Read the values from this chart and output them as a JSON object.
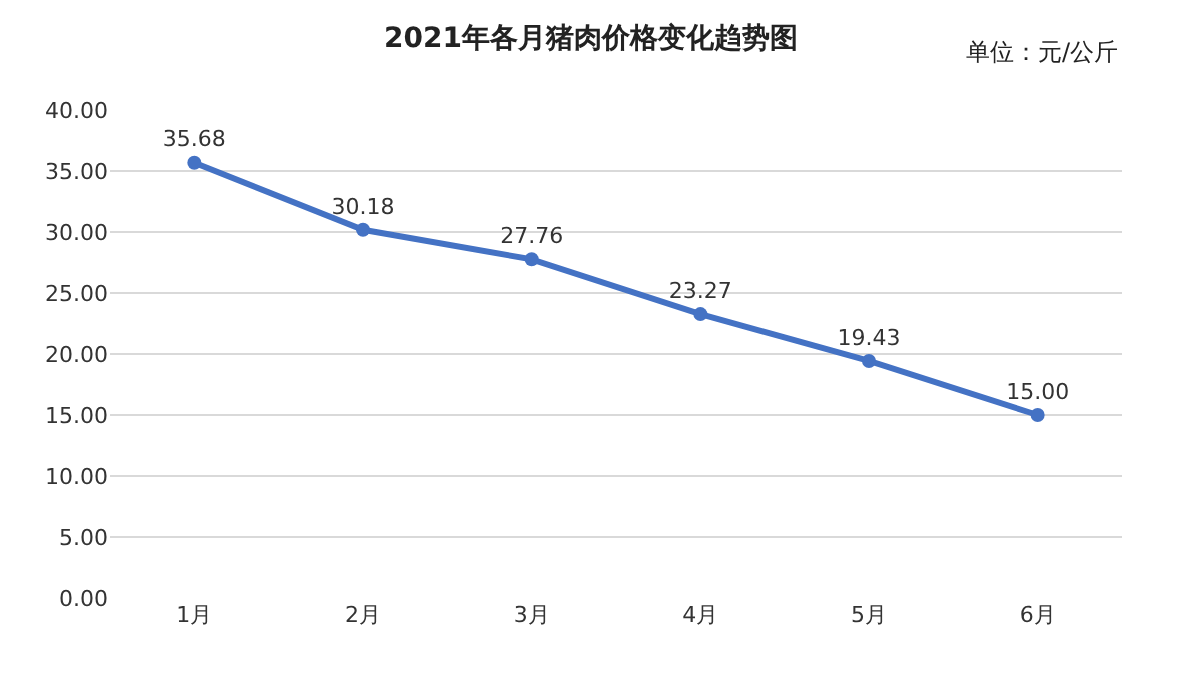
{
  "chart_data": {
    "type": "line",
    "title": "2021年各月猪肉价格变化趋势图",
    "annotations": [
      "单位：元/公斤"
    ],
    "categories": [
      "1月",
      "2月",
      "3月",
      "4月",
      "5月",
      "6月"
    ],
    "values": [
      35.68,
      30.18,
      27.76,
      23.27,
      19.43,
      15.0
    ],
    "value_labels": [
      "35.68",
      "30.18",
      "27.76",
      "23.27",
      "19.43",
      "15.00"
    ],
    "color": "#4472c4",
    "marker": "circle",
    "line_style": "solid",
    "ylim": [
      0,
      40
    ],
    "yticks": [
      {
        "value": 0,
        "label": "0.00"
      },
      {
        "value": 5,
        "label": "5.00"
      },
      {
        "value": 10,
        "label": "10.00"
      },
      {
        "value": 15,
        "label": "15.00"
      },
      {
        "value": 20,
        "label": "20.00"
      },
      {
        "value": 25,
        "label": "25.00"
      },
      {
        "value": 30,
        "label": "30.00"
      },
      {
        "value": 35,
        "label": "35.00"
      },
      {
        "value": 40,
        "label": "40.00"
      }
    ],
    "grid": "y"
  }
}
